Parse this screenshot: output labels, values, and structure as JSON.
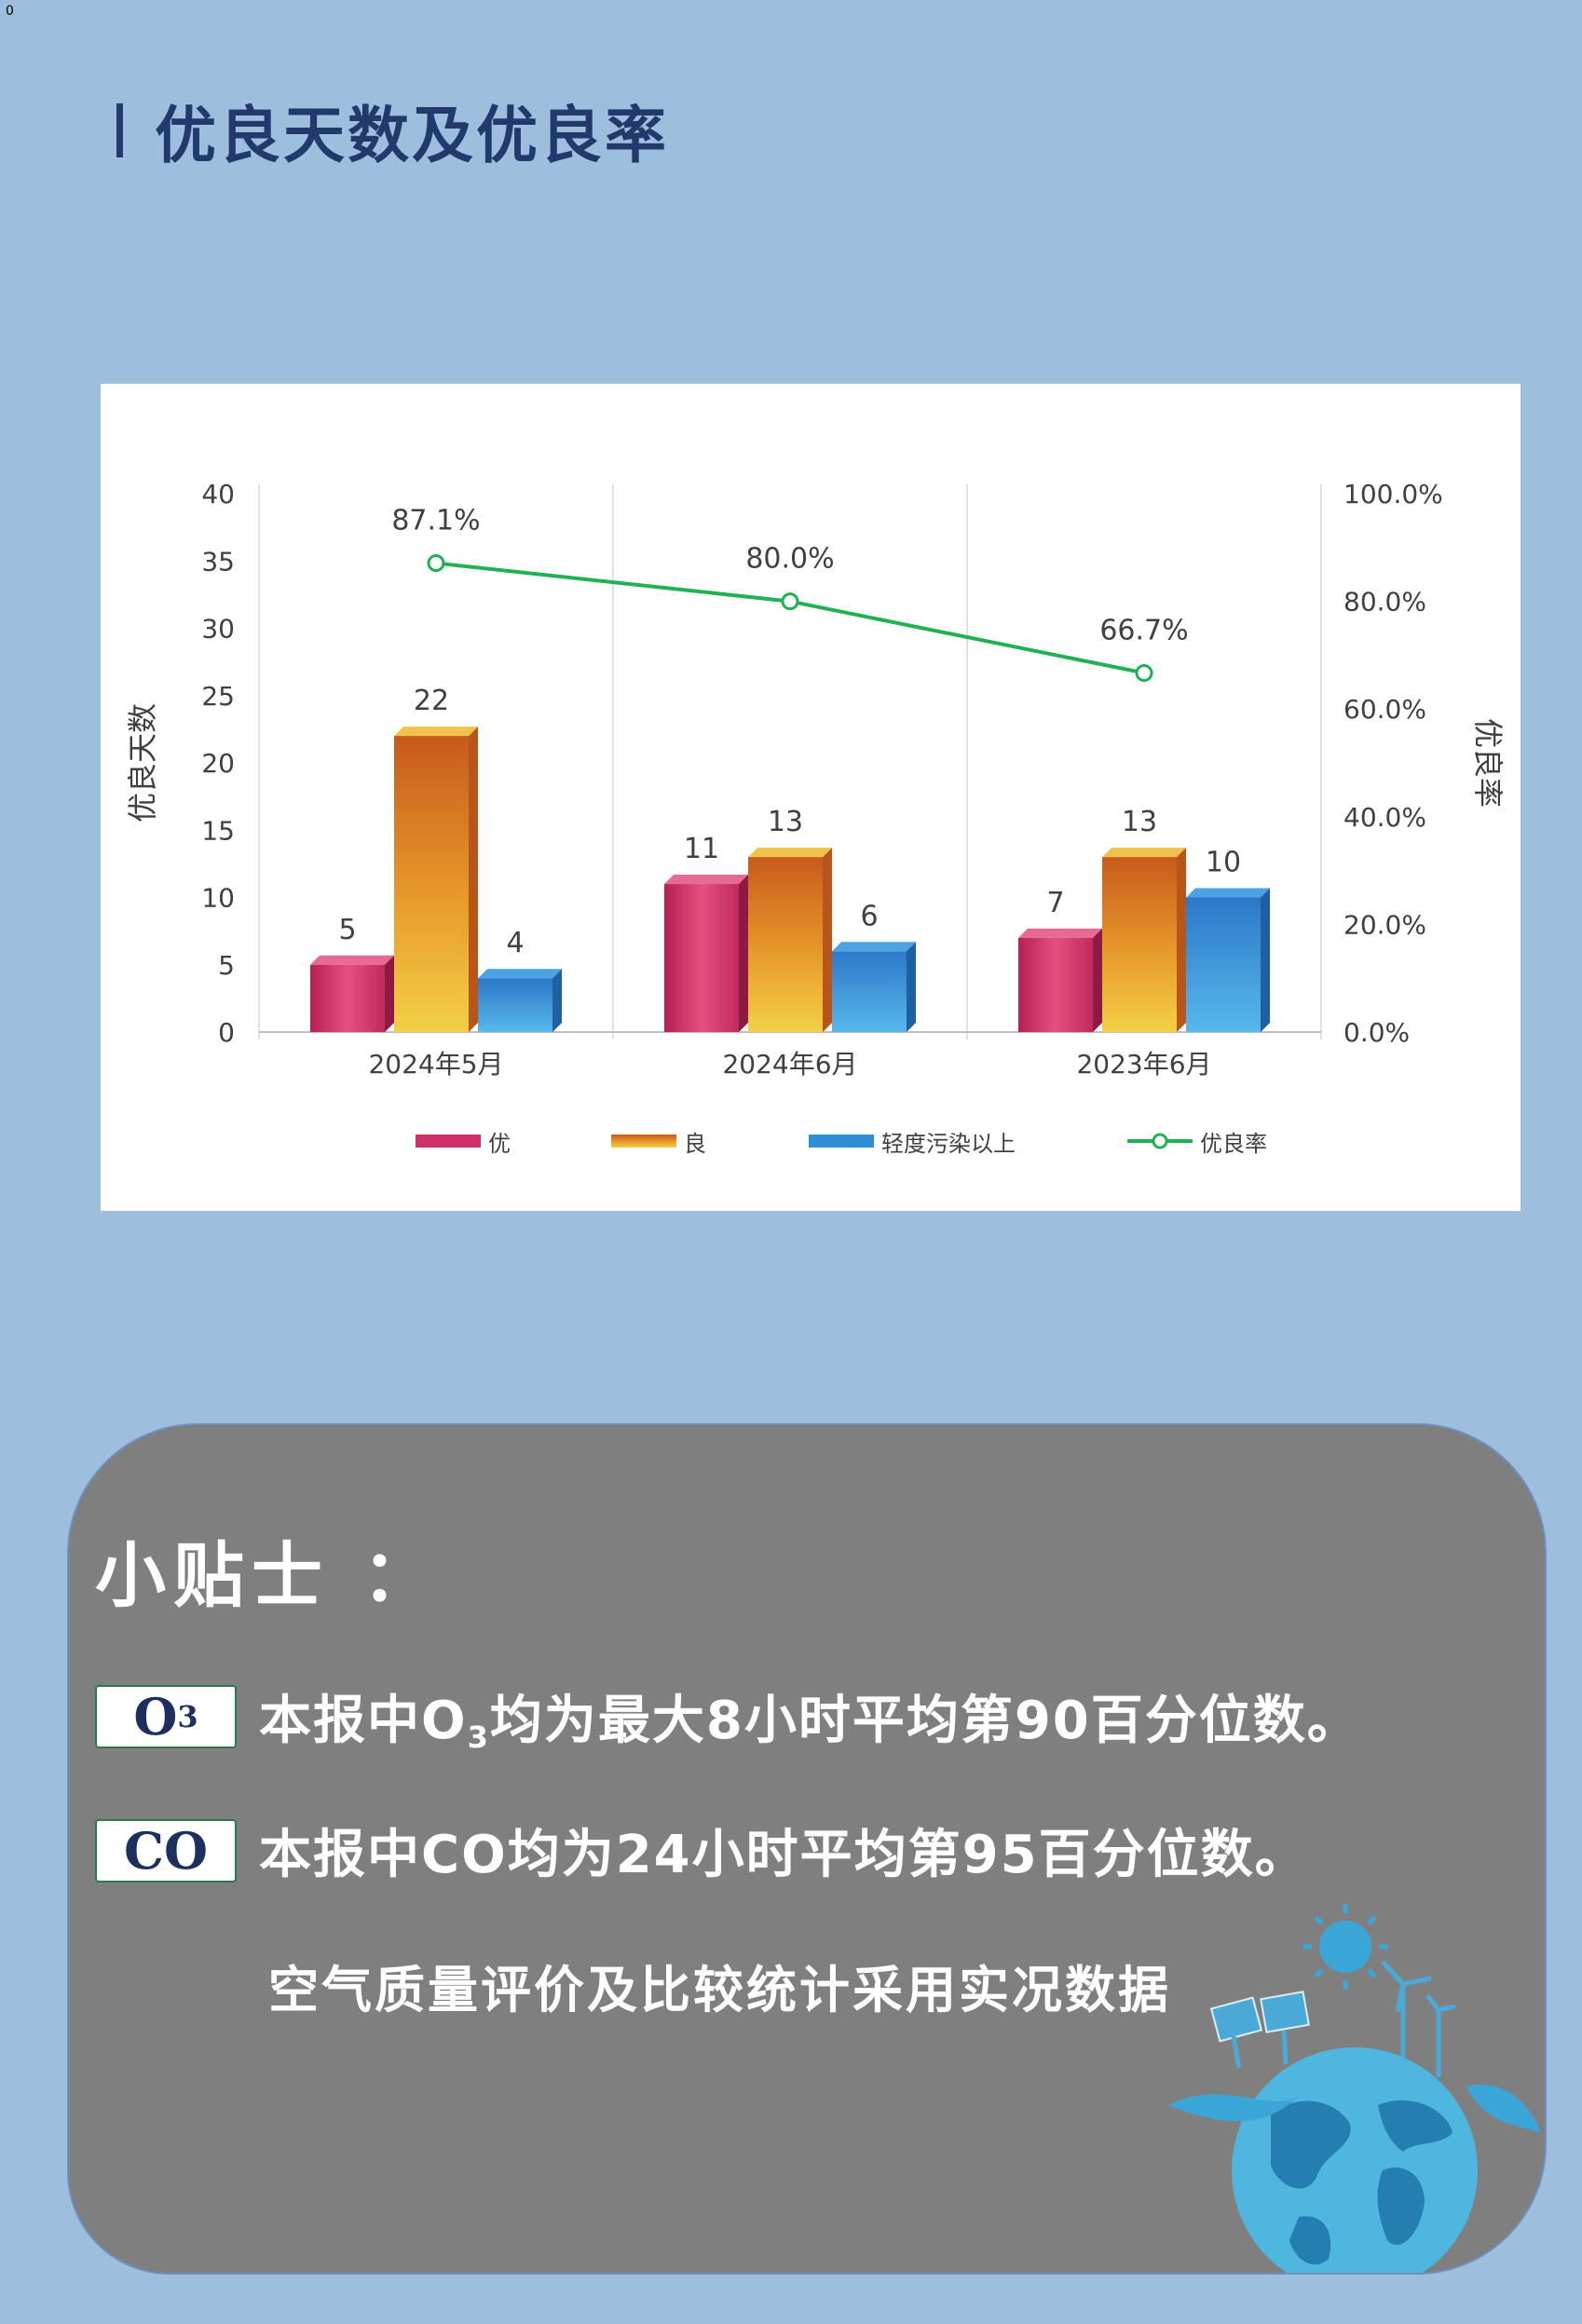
{
  "corner_mark": "0",
  "section": {
    "title": "优良天数及优良率"
  },
  "colors": {
    "page_background": "#9dbedc",
    "title_color": "#213a6b",
    "you": "#d0306a",
    "liang": "#e8a222",
    "pollution": "#2f8fd6",
    "rate_line": "#22b055",
    "tips_background": "#7f7f7f"
  },
  "chart_data": {
    "type": "bar",
    "categories": [
      "2024年5月",
      "2024年6月",
      "2023年6月"
    ],
    "series": [
      {
        "name": "优",
        "values": [
          5,
          11,
          7
        ],
        "axis": "left"
      },
      {
        "name": "良",
        "values": [
          22,
          13,
          13
        ],
        "axis": "left"
      },
      {
        "name": "轻度污染以上",
        "values": [
          4,
          6,
          10
        ],
        "axis": "left"
      },
      {
        "name": "优良率",
        "type": "line",
        "values": [
          87.1,
          80.0,
          66.7
        ],
        "value_labels": [
          "87.1%",
          "80.0%",
          "66.7%"
        ],
        "axis": "right"
      }
    ],
    "ylabel_left": "优良天数",
    "ylabel_right": "优良率",
    "ylim_left": [
      0,
      40
    ],
    "yticks_left": [
      "0",
      "5",
      "10",
      "15",
      "20",
      "25",
      "30",
      "35",
      "40"
    ],
    "ylim_right": [
      0,
      100
    ],
    "yticks_right": [
      "0.0%",
      "20.0%",
      "40.0%",
      "60.0%",
      "80.0%",
      "100.0%"
    ],
    "legend": [
      "优",
      "良",
      "轻度污染以上",
      "优良率"
    ],
    "legend_position": "bottom",
    "grid": "vertical"
  },
  "tips": {
    "title": "小贴士 ：",
    "o3": {
      "badge_main": "O",
      "badge_sub": "3",
      "text_pre": "本报中O",
      "text_sub": "3",
      "text_post": "均为最大8小时平均第90百分位数。"
    },
    "co": {
      "badge": "CO",
      "text": "本报中CO均为24小时平均第95百分位数。"
    },
    "footer": "空气质量评价及比较统计采用实况数据"
  }
}
